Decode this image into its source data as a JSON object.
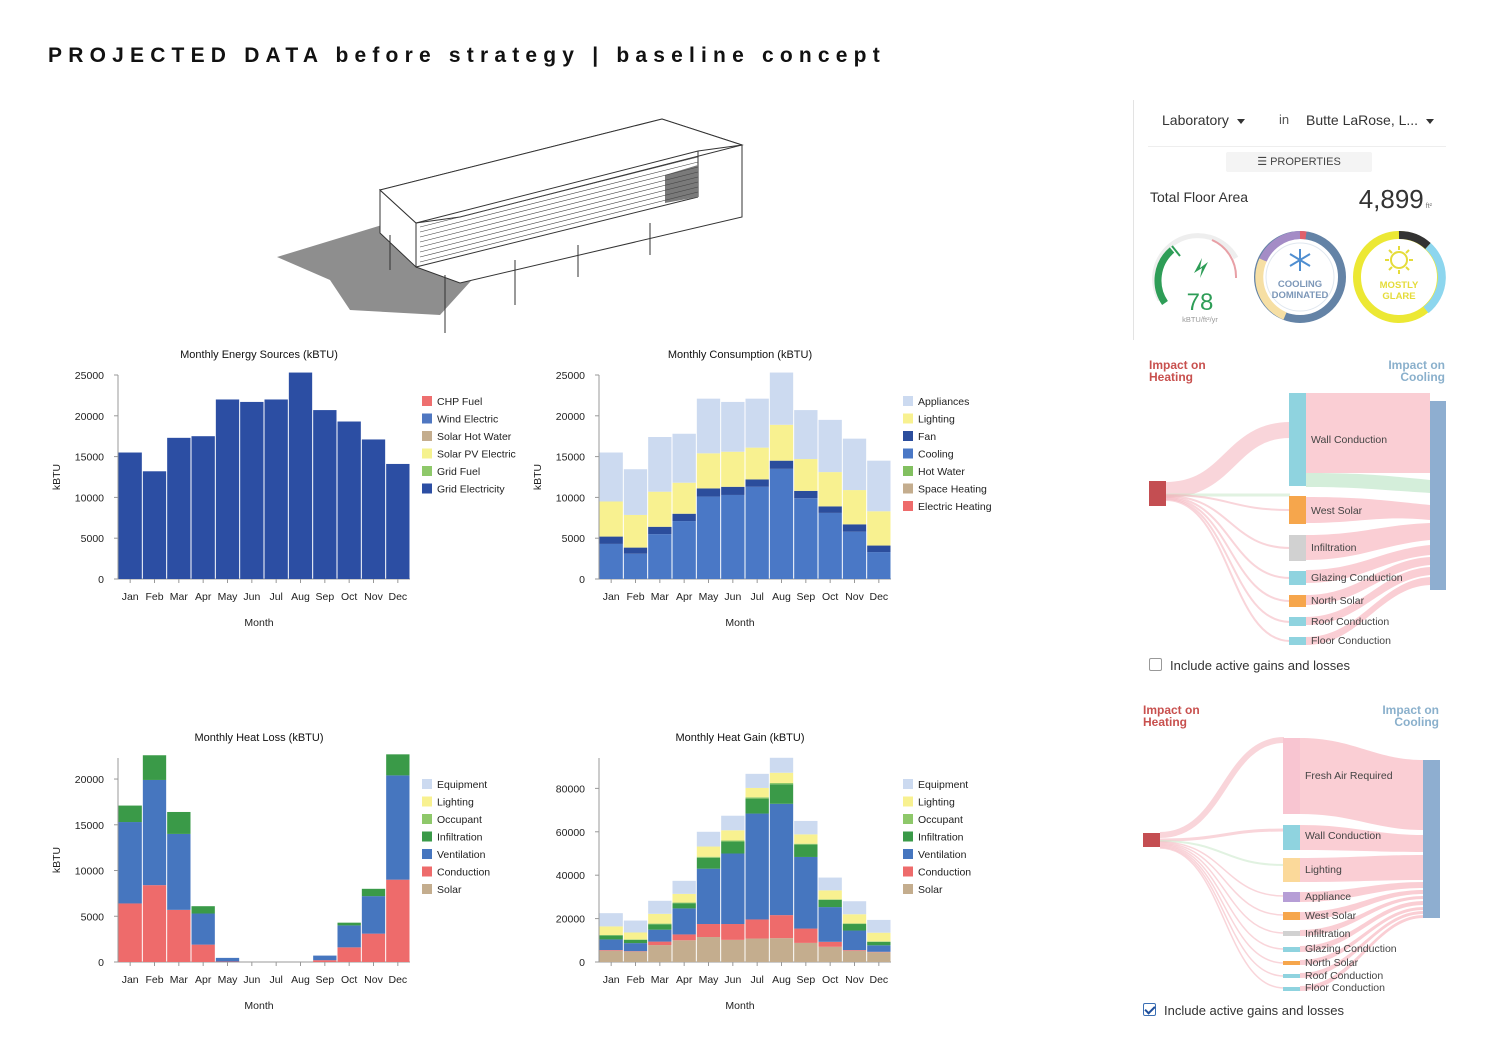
{
  "page": {
    "title": "PROJECTED DATA before strategy | baseline concept"
  },
  "charts": {
    "months": [
      "Jan",
      "Feb",
      "Mar",
      "Apr",
      "May",
      "Jun",
      "Jul",
      "Aug",
      "Sep",
      "Oct",
      "Nov",
      "Dec"
    ]
  },
  "chart_data": [
    {
      "id": "energy-sources",
      "type": "bar",
      "stacked": true,
      "title": "Monthly Energy Sources (kBTU)",
      "xlabel": "Month",
      "ylabel": "kBTU",
      "ylim": [
        0,
        25000
      ],
      "yticks": [
        0,
        5000,
        10000,
        15000,
        20000,
        25000
      ],
      "categories": [
        "Jan",
        "Feb",
        "Mar",
        "Apr",
        "May",
        "Jun",
        "Jul",
        "Aug",
        "Sep",
        "Oct",
        "Nov",
        "Dec"
      ],
      "legend": [
        "CHP Fuel",
        "Wind Electric",
        "Solar Hot Water",
        "Solar PV Electric",
        "Grid Fuel",
        "Grid Electricity"
      ],
      "series": [
        {
          "name": "Grid Electricity",
          "color": "#2c4ea3",
          "values": [
            15500,
            13200,
            17300,
            17500,
            22000,
            21700,
            22000,
            25300,
            20700,
            19300,
            17100,
            14100
          ]
        }
      ],
      "legend_colors": [
        "#ee6f6f",
        "#4f77c1",
        "#c4ad8e",
        "#f5f28e",
        "#8ec86a",
        "#2c4ea3"
      ]
    },
    {
      "id": "consumption",
      "type": "bar",
      "stacked": true,
      "title": "Monthly Consumption (kBTU)",
      "xlabel": "Month",
      "ylabel": "kBTU",
      "ylim": [
        0,
        25000
      ],
      "yticks": [
        0,
        5000,
        10000,
        15000,
        20000,
        25000
      ],
      "categories": [
        "Jan",
        "Feb",
        "Mar",
        "Apr",
        "May",
        "Jun",
        "Jul",
        "Aug",
        "Sep",
        "Oct",
        "Nov",
        "Dec"
      ],
      "legend": [
        "Appliances",
        "Lighting",
        "Fan",
        "Cooling",
        "Hot Water",
        "Space Heating",
        "Electric Heating"
      ],
      "legend_colors": [
        "#ccdaf0",
        "#f8f190",
        "#2b4d9c",
        "#4a78c6",
        "#82c060",
        "#c4ad8e",
        "#ee6b6b"
      ],
      "series": [
        {
          "name": "Cooling",
          "color": "#4a78c6",
          "values": [
            4300,
            3100,
            5500,
            7100,
            10100,
            10300,
            11300,
            13500,
            9900,
            8100,
            5800,
            3300
          ]
        },
        {
          "name": "Fan",
          "color": "#2b4d9c",
          "values": [
            900,
            750,
            900,
            900,
            1000,
            1000,
            900,
            1000,
            900,
            800,
            900,
            800
          ]
        },
        {
          "name": "Lighting",
          "color": "#f8f190",
          "values": [
            4300,
            4000,
            4300,
            3800,
            4300,
            4300,
            3900,
            4400,
            3900,
            4200,
            4200,
            4200
          ]
        },
        {
          "name": "Appliances",
          "color": "#ccdaf0",
          "values": [
            6000,
            5600,
            6700,
            6000,
            6700,
            6100,
            6000,
            6400,
            6000,
            6400,
            6300,
            6200
          ]
        }
      ]
    },
    {
      "id": "heat-loss",
      "type": "bar",
      "stacked": true,
      "title": "Monthly Heat Loss (kBTU)",
      "xlabel": "Month",
      "ylabel": "kBTU",
      "ylim": [
        0,
        22300
      ],
      "yticks": [
        0,
        5000,
        10000,
        15000,
        20000
      ],
      "categories": [
        "Jan",
        "Feb",
        "Mar",
        "Apr",
        "May",
        "Jun",
        "Jul",
        "Aug",
        "Sep",
        "Oct",
        "Nov",
        "Dec"
      ],
      "legend": [
        "Equipment",
        "Lighting",
        "Occupant",
        "Infiltration",
        "Ventilation",
        "Conduction",
        "Solar"
      ],
      "legend_colors": [
        "#ccdaf0",
        "#f8f190",
        "#8ec86a",
        "#3a9a48",
        "#4676bf",
        "#ee6b6b",
        "#c4ad8e"
      ],
      "series": [
        {
          "name": "Conduction",
          "color": "#ee6b6b",
          "values": [
            6400,
            8400,
            5700,
            1900,
            50,
            0,
            0,
            0,
            200,
            1600,
            3100,
            9000
          ]
        },
        {
          "name": "Ventilation",
          "color": "#4676bf",
          "values": [
            8900,
            11500,
            8300,
            3400,
            400,
            0,
            0,
            0,
            500,
            2400,
            4100,
            11400
          ]
        },
        {
          "name": "Infiltration",
          "color": "#3a9a48",
          "values": [
            1800,
            2700,
            2400,
            800,
            0,
            0,
            0,
            0,
            0,
            300,
            800,
            2300
          ]
        }
      ]
    },
    {
      "id": "heat-gain",
      "type": "bar",
      "stacked": true,
      "title": "Monthly Heat Gain (kBTU)",
      "xlabel": "Month",
      "ylabel": "",
      "ylim": [
        0,
        94000
      ],
      "yticks": [
        0,
        20000,
        40000,
        60000,
        80000
      ],
      "categories": [
        "Jan",
        "Feb",
        "Mar",
        "Apr",
        "May",
        "Jun",
        "Jul",
        "Aug",
        "Sep",
        "Oct",
        "Nov",
        "Dec"
      ],
      "legend": [
        "Equipment",
        "Lighting",
        "Occupant",
        "Infiltration",
        "Ventilation",
        "Conduction",
        "Solar"
      ],
      "legend_colors": [
        "#ccdaf0",
        "#f8f190",
        "#8ec86a",
        "#3a9a48",
        "#4676bf",
        "#ee6b6b",
        "#c4ad8e"
      ],
      "series": [
        {
          "name": "Solar",
          "color": "#c4ad8e",
          "values": [
            5200,
            4800,
            7800,
            10000,
            11500,
            10200,
            10800,
            11000,
            8800,
            7000,
            5200,
            4500
          ]
        },
        {
          "name": "Conduction",
          "color": "#ee6b6b",
          "values": [
            300,
            200,
            1600,
            2700,
            6000,
            7300,
            8800,
            10600,
            6600,
            2300,
            300,
            200
          ]
        },
        {
          "name": "Ventilation",
          "color": "#4676bf",
          "values": [
            4900,
            3700,
            5500,
            12000,
            25500,
            32500,
            48800,
            51300,
            33000,
            16000,
            9000,
            3000
          ]
        },
        {
          "name": "Infiltration",
          "color": "#3a9a48",
          "values": [
            1800,
            1500,
            2500,
            2400,
            5000,
            5500,
            6900,
            9000,
            5700,
            3300,
            3000,
            1600
          ]
        },
        {
          "name": "Occupant",
          "color": "#8ec86a",
          "values": [
            200,
            200,
            300,
            300,
            500,
            500,
            600,
            600,
            400,
            300,
            300,
            200
          ]
        },
        {
          "name": "Lighting",
          "color": "#f8f190",
          "values": [
            4000,
            3200,
            4500,
            4000,
            4700,
            4700,
            4300,
            4700,
            4300,
            4100,
            4200,
            4000
          ]
        },
        {
          "name": "Equipment",
          "color": "#ccdaf0",
          "values": [
            6100,
            5500,
            6000,
            6000,
            6800,
            6700,
            6500,
            6900,
            6200,
            5900,
            6000,
            5900
          ]
        }
      ]
    }
  ],
  "sidebar": {
    "building_type": "Laboratory",
    "in_label": "in",
    "location": "Butte LaRose, L...",
    "properties_label": "PROPERTIES",
    "total_floor_area_label": "Total Floor Area",
    "total_floor_area_value": "4,899",
    "total_floor_area_unit": "ft²",
    "eui_value": "78",
    "eui_unit": "kBTU/ft²/yr",
    "eui_color": "#2e9d57",
    "cooling_label_1": "COOLING",
    "cooling_label_2": "DOMINATED",
    "glare_label_1": "MOSTLY",
    "glare_label_2": "GLARE"
  },
  "sankey_heating": {
    "left_heading_1": "Impact on",
    "left_heading_2": "Heating",
    "right_heading_1": "Impact on",
    "right_heading_2": "Cooling",
    "flows": [
      "Wall Conduction",
      "West Solar",
      "Infiltration",
      "Glazing Conduction",
      "North Solar",
      "Roof Conduction",
      "Floor Conduction"
    ],
    "include_label": "Include active gains and losses",
    "include_checked": false
  },
  "sankey_cooling": {
    "left_heading_1": "Impact on",
    "left_heading_2": "Heating",
    "right_heading_1": "Impact on",
    "right_heading_2": "Cooling",
    "flows": [
      "Fresh Air Required",
      "Wall Conduction",
      "Lighting",
      "Appliance",
      "West Solar",
      "Infiltration",
      "Glazing Conduction",
      "North Solar",
      "Roof Conduction",
      "Floor Conduction"
    ],
    "include_label": "Include active gains and losses",
    "include_checked": true
  }
}
